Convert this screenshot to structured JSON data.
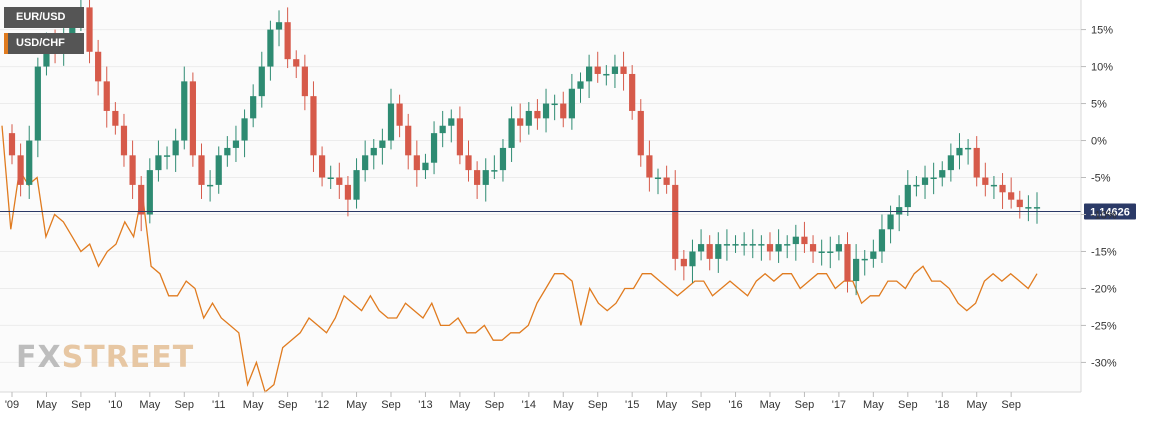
{
  "chart_data": {
    "type": "candlestick",
    "legend": [
      {
        "name": "EUR/USD",
        "color": "#555555"
      },
      {
        "name": "USD/CHF",
        "color": "#e07b1f"
      }
    ],
    "y_axis": {
      "ticks": [
        15,
        10,
        5,
        0,
        -5,
        -10,
        -15,
        -20,
        -25,
        -30
      ],
      "tick_labels": [
        "15%",
        "10%",
        "5%",
        "0%",
        "-5%",
        "-10%",
        "-15%",
        "-20%",
        "-25%",
        "-30%"
      ],
      "range": [
        -34,
        19
      ]
    },
    "x_axis": {
      "labels": [
        "'09",
        "May",
        "Sep",
        "'10",
        "May",
        "Sep",
        "'11",
        "May",
        "Sep",
        "'12",
        "May",
        "Sep",
        "'13",
        "May",
        "Sep",
        "'14",
        "May",
        "Sep",
        "'15",
        "May",
        "Sep",
        "'16",
        "May",
        "Sep",
        "'17",
        "May",
        "Sep",
        "'18",
        "May",
        "Sep"
      ],
      "start_month": "2009-01",
      "end_month": "2018-10"
    },
    "current_price": {
      "label": "1.14626",
      "value_pct": -9.6
    },
    "eurusd": {
      "name": "EUR/USD",
      "up_color": "#2e8b72",
      "down_color": "#d65a4a",
      "closes": [
        -2,
        -6,
        0,
        10,
        13,
        12,
        14,
        16,
        18,
        12,
        8,
        4,
        2,
        -2,
        -6,
        -10,
        -4,
        -2,
        -2,
        0,
        8,
        -2,
        -6,
        -6,
        -2,
        -1,
        0,
        3,
        6,
        10,
        15,
        16,
        11,
        10,
        6,
        -2,
        -5,
        -5,
        -6,
        -8,
        -4,
        -2,
        -1,
        0,
        5,
        2,
        -2,
        -4,
        -3,
        1,
        2,
        3,
        -2,
        -4,
        -6,
        -4,
        -4,
        -1,
        3,
        2,
        4,
        3,
        5,
        5,
        3,
        7,
        8,
        10,
        9,
        9,
        10,
        9,
        4,
        -2,
        -5,
        -5,
        -6,
        -16,
        -17,
        -15,
        -14,
        -16,
        -14,
        -14,
        -14,
        -14,
        -14,
        -14,
        -15,
        -14,
        -14,
        -13,
        -14,
        -15,
        -15,
        -15,
        -14,
        -19,
        -16,
        -16,
        -15,
        -12,
        -10,
        -9,
        -6,
        -6,
        -5,
        -5,
        -4,
        -2,
        -1,
        -1,
        -5,
        -6,
        -6,
        -7,
        -8,
        -9,
        -9,
        -9
      ],
      "note": "monthly closes in % change; candles drawn from consecutive closes"
    },
    "usdchf": {
      "name": "USD/CHF",
      "color": "#e07b1f",
      "values": [
        2,
        -12,
        -4,
        -6,
        -5,
        -13,
        -10,
        -11,
        -13,
        -15,
        -14,
        -17,
        -15,
        -14,
        -11,
        -13,
        -7,
        -17,
        -18,
        -21,
        -21,
        -19,
        -20,
        -24,
        -22,
        -24,
        -25,
        -26,
        -33,
        -30,
        -34,
        -33,
        -28,
        -27,
        -26,
        -24,
        -25,
        -26,
        -24,
        -21,
        -22,
        -23,
        -21,
        -23,
        -24,
        -24,
        -22,
        -23,
        -24,
        -22,
        -25,
        -25,
        -24,
        -26,
        -26,
        -25,
        -27,
        -27,
        -26,
        -26,
        -25,
        -22,
        -20,
        -18,
        -18,
        -19,
        -25,
        -20,
        -22,
        -23,
        -22,
        -20,
        -20,
        -18,
        -18,
        -19,
        -20,
        -21,
        -20,
        -19,
        -19,
        -21,
        -20,
        -19,
        -20,
        -21,
        -19,
        -18,
        -19,
        -18,
        -18,
        -20,
        -19,
        -18,
        -18,
        -20,
        -19,
        -19,
        -22,
        -21,
        -21,
        -19,
        -19,
        -20,
        -18,
        -17,
        -19,
        -19,
        -20,
        -22,
        -23,
        -22,
        -19,
        -18,
        -19,
        -18,
        -19,
        -20,
        -18
      ],
      "note": "monthly values in % change"
    }
  },
  "logo": {
    "fx": "FX",
    "street": "STREET"
  }
}
